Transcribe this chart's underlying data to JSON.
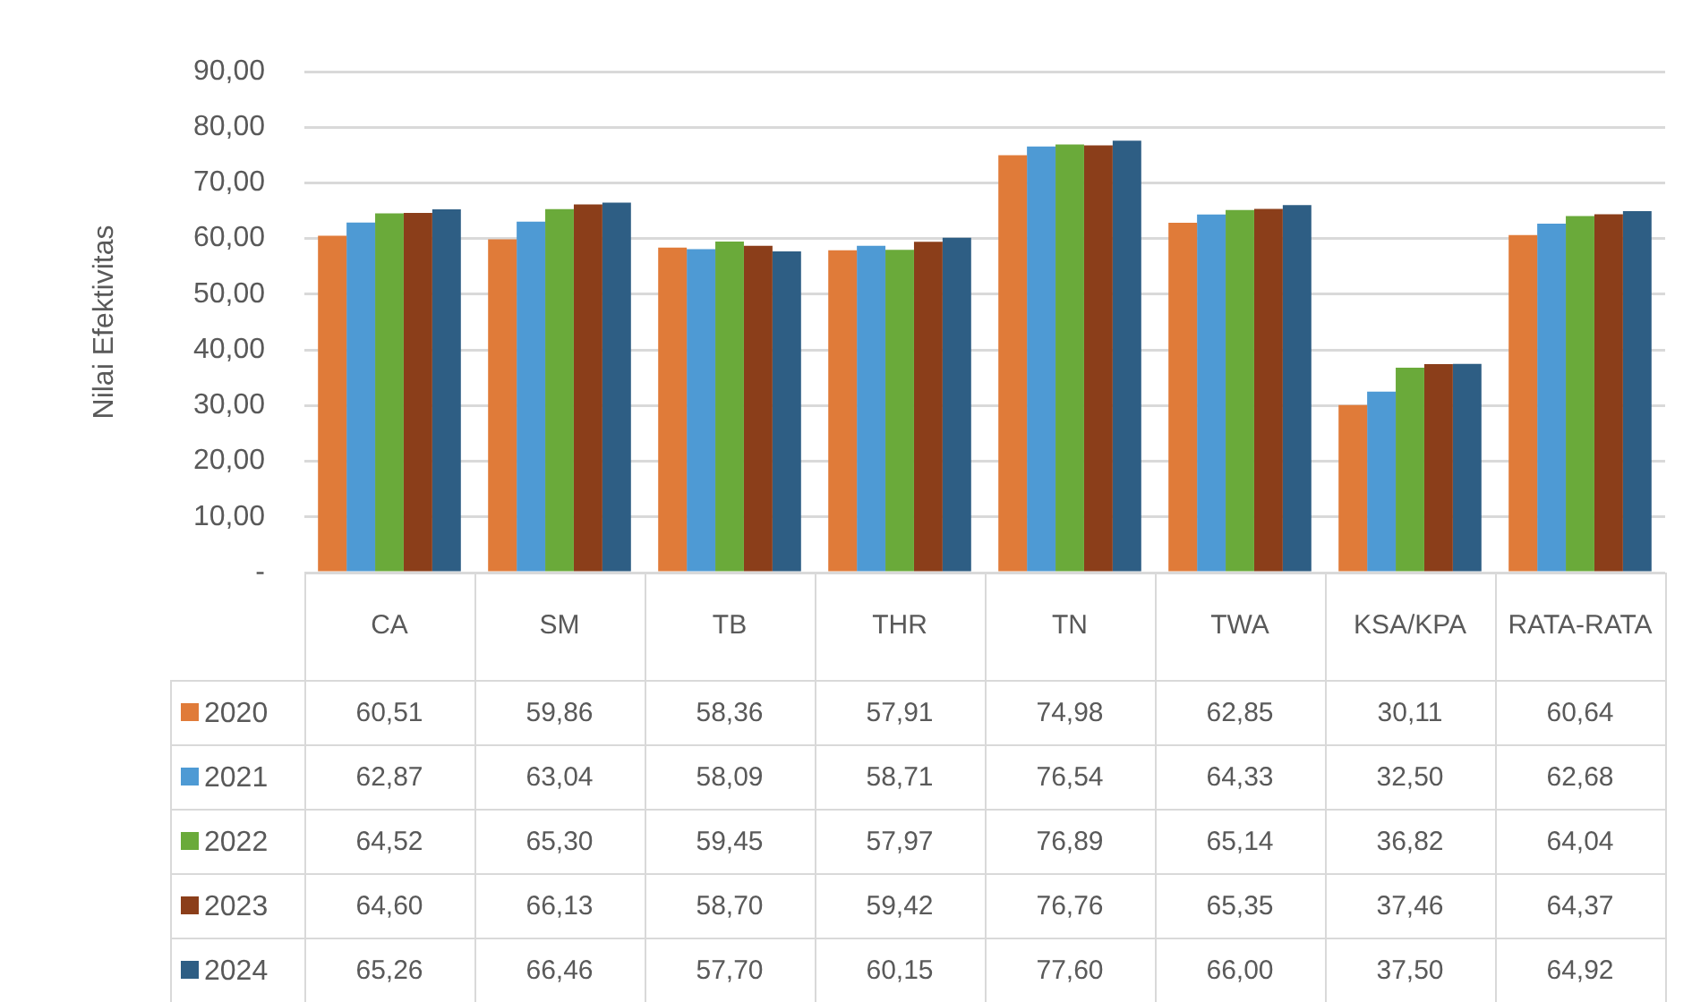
{
  "chart_data": {
    "type": "bar",
    "ylabel": "Nilai Efektivitas",
    "categories": [
      "CA",
      "SM",
      "TB",
      "THR",
      "TN",
      "TWA",
      "KSA/KPA",
      "RATA-RATA"
    ],
    "series": [
      {
        "name": "2020",
        "color": "#e07b39",
        "values": [
          60.51,
          59.86,
          58.36,
          57.91,
          74.98,
          62.85,
          30.11,
          60.64
        ],
        "value_labels": [
          "60,51",
          "59,86",
          "58,36",
          "57,91",
          "74,98",
          "62,85",
          "30,11",
          "60,64"
        ]
      },
      {
        "name": "2021",
        "color": "#4e9ad4",
        "values": [
          62.87,
          63.04,
          58.09,
          58.71,
          76.54,
          64.33,
          32.5,
          62.68
        ],
        "value_labels": [
          "62,87",
          "63,04",
          "58,09",
          "58,71",
          "76,54",
          "64,33",
          "32,50",
          "62,68"
        ]
      },
      {
        "name": "2022",
        "color": "#6aaa3a",
        "values": [
          64.52,
          65.3,
          59.45,
          57.97,
          76.89,
          65.14,
          36.82,
          64.04
        ],
        "value_labels": [
          "64,52",
          "65,30",
          "59,45",
          "57,97",
          "76,89",
          "65,14",
          "36,82",
          "64,04"
        ]
      },
      {
        "name": "2023",
        "color": "#8b3e1a",
        "values": [
          64.6,
          66.13,
          58.7,
          59.42,
          76.76,
          65.35,
          37.46,
          64.37
        ],
        "value_labels": [
          "64,60",
          "66,13",
          "58,70",
          "59,42",
          "76,76",
          "65,35",
          "37,46",
          "64,37"
        ]
      },
      {
        "name": "2024",
        "color": "#2e5e84",
        "values": [
          65.26,
          66.46,
          57.7,
          60.15,
          77.6,
          66.0,
          37.5,
          64.92
        ],
        "value_labels": [
          "65,26",
          "66,46",
          "57,70",
          "60,15",
          "77,60",
          "66,00",
          "37,50",
          "64,92"
        ]
      }
    ],
    "ylim": [
      0,
      90
    ],
    "yticks": [
      {
        "value": 0,
        "label": "-"
      },
      {
        "value": 10,
        "label": "10,00"
      },
      {
        "value": 20,
        "label": "20,00"
      },
      {
        "value": 30,
        "label": "30,00"
      },
      {
        "value": 40,
        "label": "40,00"
      },
      {
        "value": 50,
        "label": "50,00"
      },
      {
        "value": 60,
        "label": "60,00"
      },
      {
        "value": 70,
        "label": "70,00"
      },
      {
        "value": 80,
        "label": "80,00"
      },
      {
        "value": 90,
        "label": "90,00"
      }
    ],
    "grid": "y",
    "legend": "bottom"
  }
}
